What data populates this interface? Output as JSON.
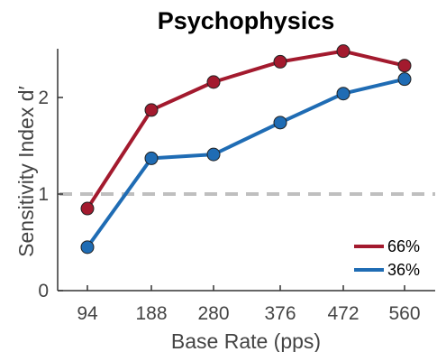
{
  "chart_data": {
    "type": "line",
    "title": "Psychophysics",
    "xlabel": "Base Rate (pps)",
    "ylabel": "Sensitivity Index d′",
    "categories": [
      "94",
      "188",
      "280",
      "376",
      "472",
      "560"
    ],
    "ylim": [
      0,
      2.5
    ],
    "yticks": [
      "0",
      "1",
      "2"
    ],
    "grid": false,
    "legend_position": "bottom-right",
    "reference_line": {
      "y": 1,
      "style": "dashed",
      "color": "#bfbfbf"
    },
    "series": [
      {
        "name": "66%",
        "color": "#a31a2e",
        "values": [
          0.85,
          1.87,
          2.16,
          2.37,
          2.48,
          2.33
        ]
      },
      {
        "name": "36%",
        "color": "#1f6cb4",
        "values": [
          0.45,
          1.37,
          1.41,
          1.74,
          2.04,
          2.19
        ]
      }
    ]
  }
}
